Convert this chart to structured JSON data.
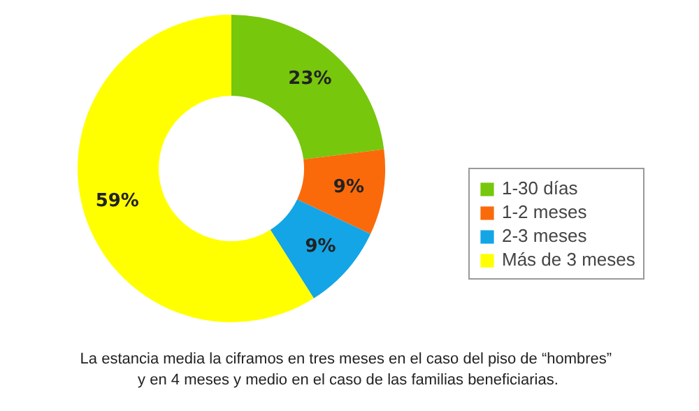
{
  "chart_data": {
    "type": "donut",
    "categories": [
      "1-30 días",
      "1-2 meses",
      "2-3 meses",
      "Más de 3 meses"
    ],
    "values": [
      23,
      9,
      9,
      59
    ],
    "colors": [
      "#77c70c",
      "#fb6a0a",
      "#13a5e6",
      "#ffff00"
    ],
    "value_labels": [
      "23%",
      "9%",
      "9%",
      "59%"
    ],
    "legend": "right",
    "annotations": [
      "La estancia media  la ciframos en  tres meses en el caso del piso de “hombres”\ny  en 4 meses y medio en el caso de las familias beneficiarias."
    ]
  }
}
